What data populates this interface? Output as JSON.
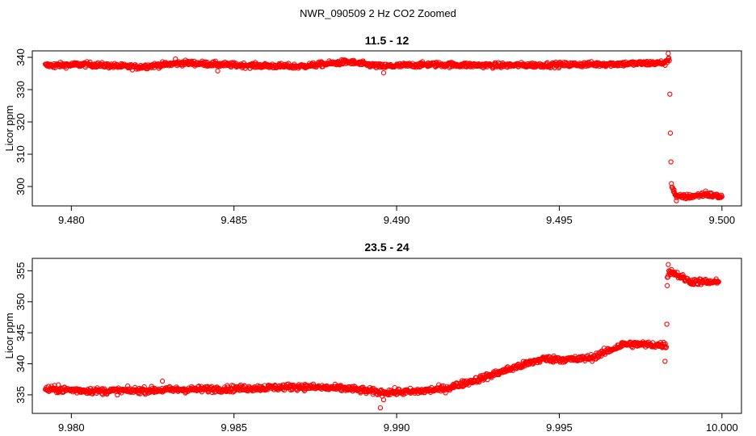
{
  "title": "NWR_090509  2 Hz CO2 Zoomed",
  "chart_data": [
    {
      "type": "scatter",
      "title": "11.5 - 12",
      "ylabel": "Licor ppm",
      "xlabel": "",
      "marker_color": "#ff0000",
      "xlim": [
        9.4788,
        9.5006
      ],
      "ylim": [
        294,
        342
      ],
      "x_ticks": [
        9.48,
        9.485,
        9.49,
        9.495,
        9.5
      ],
      "x_tick_labels": [
        "9.480",
        "9.485",
        "9.490",
        "9.495",
        "9.500"
      ],
      "y_ticks": [
        300,
        310,
        320,
        330,
        340
      ],
      "y_tick_labels": [
        "300",
        "310",
        "320",
        "330",
        "340"
      ],
      "x_range": [
        9.4792,
        9.5
      ],
      "profile": [
        [
          9.4792,
          337.5
        ],
        [
          9.4805,
          337.8
        ],
        [
          9.482,
          337.0
        ],
        [
          9.4835,
          338.3
        ],
        [
          9.485,
          337.6
        ],
        [
          9.487,
          337.2
        ],
        [
          9.4885,
          338.6
        ],
        [
          9.4895,
          337.2
        ],
        [
          9.491,
          337.8
        ],
        [
          9.493,
          337.5
        ],
        [
          9.495,
          337.7
        ],
        [
          9.497,
          338.0
        ],
        [
          9.4983,
          338.3
        ],
        [
          9.49838,
          340.5
        ],
        [
          9.4984,
          328.0
        ],
        [
          9.49842,
          312.5
        ],
        [
          9.49845,
          300.2
        ],
        [
          9.4986,
          296.8
        ],
        [
          9.499,
          296.9
        ],
        [
          9.4995,
          297.6
        ],
        [
          9.5,
          296.8
        ]
      ],
      "spikes": [
        [
          9.4795,
          336.8
        ],
        [
          9.4832,
          339.5
        ],
        [
          9.4845,
          335.8
        ],
        [
          9.4896,
          335.2
        ],
        [
          9.4986,
          295.6
        ],
        [
          9.4995,
          298.6
        ],
        [
          9.49835,
          341.2
        ]
      ],
      "noise": 0.75
    },
    {
      "type": "scatter",
      "title": "23.5 - 24",
      "ylabel": "Licor ppm",
      "xlabel": "",
      "marker_color": "#ff0000",
      "xlim": [
        9.9788,
        10.0006
      ],
      "ylim": [
        332,
        357
      ],
      "x_ticks": [
        9.98,
        9.985,
        9.99,
        9.995,
        10.0
      ],
      "x_tick_labels": [
        "9.980",
        "9.985",
        "9.990",
        "9.995",
        "10.000"
      ],
      "y_ticks": [
        335,
        340,
        345,
        350,
        355
      ],
      "y_tick_labels": [
        "335",
        "340",
        "345",
        "350",
        "355"
      ],
      "x_range": [
        9.9792,
        9.9999
      ],
      "profile": [
        [
          9.9792,
          335.9
        ],
        [
          9.981,
          335.6
        ],
        [
          9.983,
          335.8
        ],
        [
          9.985,
          336.0
        ],
        [
          9.987,
          336.3
        ],
        [
          9.9885,
          336.0
        ],
        [
          9.9895,
          335.4
        ],
        [
          9.9905,
          335.5
        ],
        [
          9.9915,
          336.0
        ],
        [
          9.9925,
          337.5
        ],
        [
          9.9935,
          339.2
        ],
        [
          9.9945,
          340.8
        ],
        [
          9.9955,
          340.7
        ],
        [
          9.996,
          341.0
        ],
        [
          9.997,
          343.2
        ],
        [
          9.9983,
          343.0
        ],
        [
          9.99832,
          354.0
        ],
        [
          9.9984,
          355.0
        ],
        [
          9.999,
          353.3
        ],
        [
          9.9999,
          353.1
        ]
      ],
      "spikes": [
        [
          9.9796,
          336.6
        ],
        [
          9.9828,
          337.2
        ],
        [
          9.9895,
          332.9
        ],
        [
          9.9896,
          334.2
        ],
        [
          9.99825,
          340.4
        ],
        [
          9.99835,
          356.0
        ],
        [
          9.99832,
          352.6
        ]
      ],
      "noise": 0.5
    }
  ]
}
